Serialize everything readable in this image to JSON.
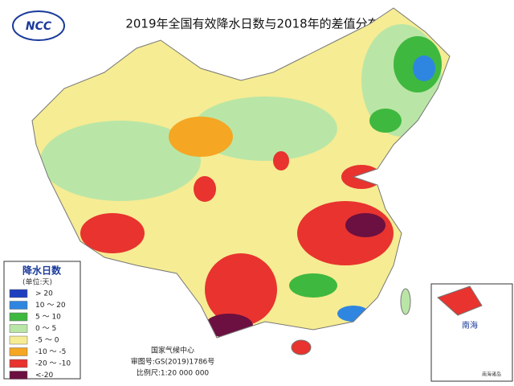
{
  "logo": "NCC",
  "title": "2019年全国有效降水日数与2018年的差值分布图",
  "legend": {
    "title": "降水日数",
    "unit": "(单位:天)",
    "items": [
      {
        "label": "> 20",
        "color": "#1f3fbf"
      },
      {
        "label": "10 ～ 20",
        "color": "#2f86e0"
      },
      {
        "label": "5 ～ 10",
        "color": "#3fb83f"
      },
      {
        "label": "0 ～ 5",
        "color": "#b9e6a6"
      },
      {
        "label": "-5 ～ 0",
        "color": "#f6ec93"
      },
      {
        "label": "-10 ～ -5",
        "color": "#f5a623"
      },
      {
        "label": "-20 ～ -10",
        "color": "#e8332f"
      },
      {
        "label": "<-20",
        "color": "#6b1040"
      }
    ]
  },
  "footer": {
    "agency": "国家气候中心",
    "approval": "审图号:GS(2019)1786号",
    "scale": "比例尺:1:20 000 000"
  },
  "inset": {
    "label": "南海",
    "caption": "南海诸岛"
  }
}
